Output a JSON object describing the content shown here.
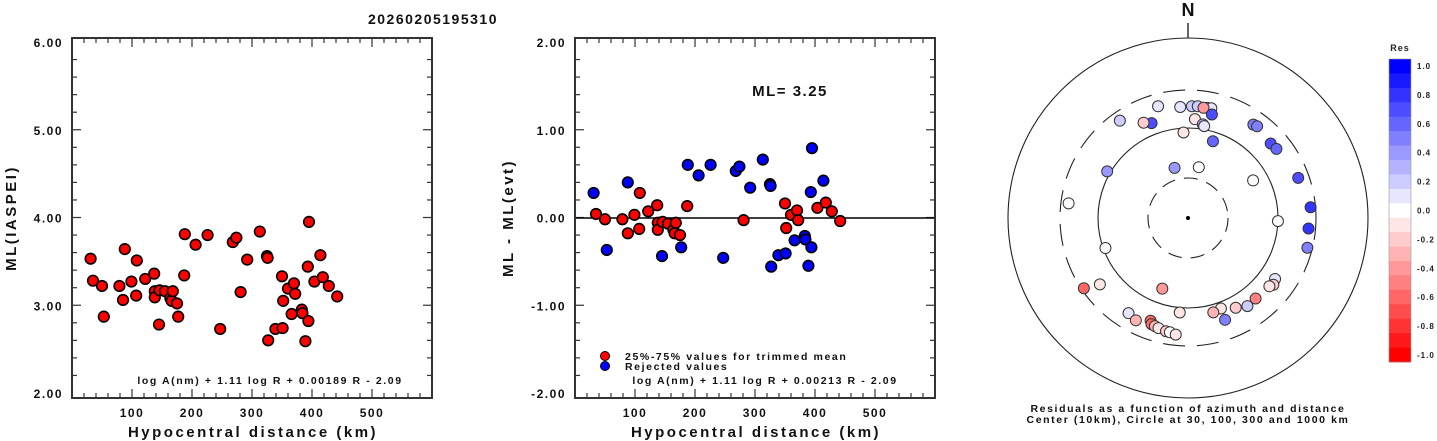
{
  "title": "20260205195310",
  "colors": {
    "accepted": "#ff0000",
    "rejected": "#0000ff",
    "frame": "#333333"
  },
  "chart_data": [
    {
      "type": "scatter",
      "id": "ml-vs-distance",
      "title": "",
      "xlabel": "Hypocentral distance (km)",
      "ylabel": "ML(IASPEI)",
      "xlim": [
        0,
        600
      ],
      "ylim": [
        2.0,
        6.0
      ],
      "xticks": [
        100,
        200,
        300,
        400,
        500
      ],
      "xtick_labels": [
        "100",
        "200",
        "300",
        "400",
        "500"
      ],
      "yticks": [
        2.0,
        3.0,
        4.0,
        5.0,
        6.0
      ],
      "ytick_labels": [
        "2.00",
        "3.00",
        "4.00",
        "5.00",
        "6.00"
      ],
      "grid": false,
      "annotation": "log A(nm) + 1.11 log R + 0.00189 R - 2.09",
      "series": [
        {
          "name": "stations",
          "color": "#ff0000",
          "points": [
            [
              31,
              3.53
            ],
            [
              35,
              3.28
            ],
            [
              50,
              3.22
            ],
            [
              53,
              2.87
            ],
            [
              79,
              3.22
            ],
            [
              85,
              3.06
            ],
            [
              88,
              3.64
            ],
            [
              99,
              3.27
            ],
            [
              107,
              3.11
            ],
            [
              108,
              3.51
            ],
            [
              122,
              3.3
            ],
            [
              137,
              3.36
            ],
            [
              138,
              3.16
            ],
            [
              138,
              3.09
            ],
            [
              145,
              2.78
            ],
            [
              146,
              3.17
            ],
            [
              155,
              3.16
            ],
            [
              164,
              3.08
            ],
            [
              166,
              3.05
            ],
            [
              168,
              3.16
            ],
            [
              175,
              3.02
            ],
            [
              177,
              2.87
            ],
            [
              187,
              3.34
            ],
            [
              188,
              3.81
            ],
            [
              206,
              3.69
            ],
            [
              226,
              3.8
            ],
            [
              247,
              2.73
            ],
            [
              268,
              3.72
            ],
            [
              274,
              3.77
            ],
            [
              281,
              3.15
            ],
            [
              292,
              3.52
            ],
            [
              313,
              3.84
            ],
            [
              325,
              3.56
            ],
            [
              326,
              3.54
            ],
            [
              327,
              2.6
            ],
            [
              339,
              2.73
            ],
            [
              350,
              3.33
            ],
            [
              351,
              2.74
            ],
            [
              352,
              3.05
            ],
            [
              360,
              3.19
            ],
            [
              366,
              2.9
            ],
            [
              370,
              3.25
            ],
            [
              372,
              3.13
            ],
            [
              383,
              2.95
            ],
            [
              384,
              2.91
            ],
            [
              393,
              3.44
            ],
            [
              394,
              2.82
            ],
            [
              395,
              3.95
            ],
            [
              389,
              2.59
            ],
            [
              404,
              3.27
            ],
            [
              414,
              3.57
            ],
            [
              418,
              3.32
            ],
            [
              428,
              3.22
            ],
            [
              442,
              3.1
            ]
          ]
        }
      ]
    },
    {
      "type": "scatter",
      "id": "residual-vs-distance",
      "title": "",
      "xlabel": "Hypocentral distance (km)",
      "ylabel": "ML - ML(evt)",
      "xlim": [
        0,
        600
      ],
      "ylim": [
        -2.0,
        2.0
      ],
      "xticks": [
        100,
        200,
        300,
        400,
        500
      ],
      "xtick_labels": [
        "100",
        "200",
        "300",
        "400",
        "500"
      ],
      "yticks": [
        -2.0,
        -1.0,
        0.0,
        1.0,
        2.0
      ],
      "ytick_labels": [
        "-2.00",
        "-1.00",
        "0.00",
        "1.00",
        "2.00"
      ],
      "grid": false,
      "reference_line": 0.0,
      "annotation_ml": "ML= 3.25",
      "annotation": "log A(nm) + 1.11 log R + 0.00213 R - 2.09",
      "legend": [
        {
          "label": "25%-75% values for trimmed mean",
          "color": "#ff0000"
        },
        {
          "label": "Rejected values",
          "color": "#0000ff"
        }
      ],
      "legend_placement": "bottom-left",
      "series": [
        {
          "name": "25%-75% values for trimmed mean",
          "color": "#ff0000",
          "points": [
            [
              35,
              0.04
            ],
            [
              50,
              -0.02
            ],
            [
              79,
              -0.02
            ],
            [
              88,
              -0.18
            ],
            [
              99,
              0.03
            ],
            [
              107,
              -0.13
            ],
            [
              108,
              0.28
            ],
            [
              122,
              0.07
            ],
            [
              137,
              0.14
            ],
            [
              138,
              -0.06
            ],
            [
              138,
              -0.14
            ],
            [
              146,
              -0.05
            ],
            [
              155,
              -0.07
            ],
            [
              164,
              -0.14
            ],
            [
              166,
              -0.18
            ],
            [
              168,
              -0.06
            ],
            [
              175,
              -0.2
            ],
            [
              187,
              0.13
            ],
            [
              281,
              -0.03
            ],
            [
              350,
              0.16
            ],
            [
              352,
              -0.12
            ],
            [
              360,
              0.03
            ],
            [
              370,
              0.08
            ],
            [
              372,
              -0.03
            ],
            [
              404,
              0.11
            ],
            [
              418,
              0.17
            ],
            [
              428,
              0.07
            ],
            [
              442,
              -0.04
            ]
          ]
        },
        {
          "name": "Rejected values",
          "color": "#0000ff",
          "points": [
            [
              31,
              0.28
            ],
            [
              53,
              -0.37
            ],
            [
              88,
              0.4
            ],
            [
              145,
              -0.44
            ],
            [
              177,
              -0.34
            ],
            [
              188,
              0.6
            ],
            [
              206,
              0.48
            ],
            [
              226,
              0.6
            ],
            [
              247,
              -0.46
            ],
            [
              268,
              0.53
            ],
            [
              274,
              0.58
            ],
            [
              292,
              0.34
            ],
            [
              313,
              0.66
            ],
            [
              325,
              0.38
            ],
            [
              326,
              0.36
            ],
            [
              327,
              -0.56
            ],
            [
              339,
              -0.43
            ],
            [
              351,
              -0.41
            ],
            [
              366,
              -0.26
            ],
            [
              383,
              -0.21
            ],
            [
              384,
              -0.25
            ],
            [
              389,
              -0.55
            ],
            [
              393,
              0.29
            ],
            [
              394,
              -0.34
            ],
            [
              395,
              0.79
            ],
            [
              414,
              0.42
            ]
          ]
        }
      ]
    },
    {
      "type": "scatter",
      "id": "azimuth-distance-polar",
      "title": "",
      "caption_line1": "Residuals as a function of azimuth and distance",
      "caption_line2": "Center (10km), Circle at 30, 100, 300 and 1000 km",
      "north_label": "N",
      "rings_km": [
        30,
        100,
        300,
        1000
      ],
      "ring_styles": [
        "dashed",
        "solid",
        "dashed",
        "solid"
      ],
      "center_km": 10,
      "colorbar": {
        "title": "Res",
        "range": [
          -1.0,
          1.0
        ],
        "tick_labels": [
          "1.0",
          "0.8",
          "0.6",
          "0.4",
          "0.2",
          "0.0",
          "-0.2",
          "-0.4",
          "-0.6",
          "-0.8",
          "-1.0"
        ],
        "steps": 21
      },
      "points_az_dist_res": [
        [
          356,
          185,
          0.05
        ],
        [
          2,
          188,
          0.2
        ],
        [
          5,
          190,
          0.2
        ],
        [
          10,
          188,
          0.1
        ],
        [
          12,
          190,
          0.05
        ],
        [
          8,
          185,
          -0.4
        ],
        [
          13,
          160,
          0.7
        ],
        [
          4,
          130,
          -0.15
        ],
        [
          9,
          115,
          0.25
        ],
        [
          10,
          110,
          0.05
        ],
        [
          345,
          210,
          0.05
        ],
        [
          325,
          230,
          0.2
        ],
        [
          339,
          140,
          0.7
        ],
        [
          335,
          155,
          -0.2
        ],
        [
          357,
          90,
          -0.15
        ],
        [
          18,
          80,
          0.6
        ],
        [
          35,
          200,
          0.5
        ],
        [
          37,
          205,
          0.45
        ],
        [
          48,
          185,
          0.65
        ],
        [
          52,
          190,
          0.6
        ],
        [
          70,
          220,
          0.7
        ],
        [
          85,
          260,
          0.8
        ],
        [
          95,
          245,
          0.75
        ],
        [
          104,
          260,
          0.5
        ],
        [
          277,
          240,
          0.0
        ],
        [
          300,
          110,
          0.35
        ],
        [
          345,
          40,
          0.35
        ],
        [
          12,
          40,
          0.0
        ],
        [
          60,
          70,
          0.0
        ],
        [
          92,
          100,
          0.0
        ],
        [
          250,
          95,
          0.0
        ],
        [
          233,
          180,
          -0.15
        ],
        [
          236,
          280,
          -0.6
        ],
        [
          200,
          70,
          -0.4
        ],
        [
          125,
          160,
          0.1
        ],
        [
          128,
          170,
          -0.2
        ],
        [
          130,
          160,
          -0.15
        ],
        [
          140,
          155,
          -0.55
        ],
        [
          146,
          160,
          0.15
        ],
        [
          152,
          140,
          -0.2
        ],
        [
          160,
          120,
          -0.15
        ],
        [
          165,
          125,
          -0.3
        ],
        [
          185,
          115,
          -0.15
        ],
        [
          160,
          170,
          0.45
        ],
        [
          212,
          190,
          0.1
        ],
        [
          207,
          205,
          -0.3
        ],
        [
          200,
          175,
          -0.6
        ],
        [
          199,
          190,
          -0.6
        ],
        [
          197,
          195,
          -0.3
        ],
        [
          195,
          200,
          -0.15
        ],
        [
          191,
          208,
          -0.25
        ],
        [
          189,
          210,
          0.0
        ],
        [
          186,
          220,
          -0.15
        ]
      ]
    }
  ]
}
